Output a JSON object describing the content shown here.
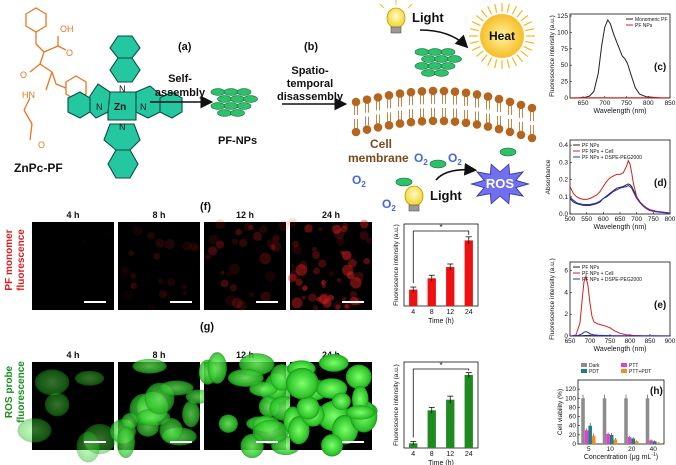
{
  "scheme": {
    "molecule_name": "ZnPc-PF",
    "metal_label": "Zn",
    "step_a_label": "(a)",
    "step_a_text": [
      "Self-",
      "assembly"
    ],
    "step_b_label": "(b)",
    "step_b_text": [
      "Spatio-",
      "temporal",
      "disassembly"
    ],
    "np_label": "PF-NPs",
    "light_label": "Light",
    "heat_label": "Heat",
    "ros_label": "ROS",
    "membrane_label": [
      "Cell",
      "membrane"
    ],
    "o2_label": "O",
    "o2_sub": "2",
    "molecule_atoms": {
      "oh": "OH",
      "o": "O",
      "hn": "HN",
      "n": "N"
    }
  },
  "imaging": {
    "row_f": {
      "panel_label": "(f)",
      "side_label": [
        "PF monomer",
        "fluorescence"
      ],
      "times": [
        "4 h",
        "8 h",
        "12 h",
        "24 h"
      ],
      "color": "#d42020"
    },
    "row_g": {
      "panel_label": "(g)",
      "side_label": [
        "ROS probe",
        "fluorescence"
      ],
      "times": [
        "4 h",
        "8 h",
        "12 h",
        "24 h"
      ],
      "color": "#1fa11f"
    }
  },
  "chart_data": [
    {
      "id": "c",
      "panel_label": "(c)",
      "type": "line",
      "xlabel": "Wavelength (nm)",
      "ylabel": "Fluorescence intensity (a.u.)",
      "xlim": [
        620,
        850
      ],
      "ylim": [
        0,
        128
      ],
      "xticks": [
        650,
        700,
        750,
        800,
        850
      ],
      "yticks": [
        0,
        25,
        50,
        75,
        100,
        125
      ],
      "legend": "top-right",
      "series": [
        {
          "name": "Monomeric PF",
          "color": "#222222",
          "x": [
            625,
            640,
            655,
            665,
            675,
            685,
            693,
            700,
            707,
            713,
            720,
            727,
            733,
            740,
            746,
            752,
            760,
            770,
            780,
            795,
            810,
            830,
            850
          ],
          "y": [
            0,
            0,
            1,
            3,
            10,
            38,
            80,
            108,
            119,
            113,
            98,
            86,
            76,
            64,
            60,
            53,
            36,
            16,
            6,
            2,
            1,
            0,
            0
          ]
        },
        {
          "name": "PF NPs",
          "color": "#d42020",
          "x": [
            625,
            850
          ],
          "y": [
            0.5,
            0.5
          ]
        }
      ]
    },
    {
      "id": "d",
      "panel_label": "(d)",
      "type": "line",
      "xlabel": "Wavelength (nm)",
      "ylabel": "Absorbance",
      "xlim": [
        500,
        800
      ],
      "ylim": [
        0,
        0.43
      ],
      "xticks": [
        500,
        550,
        600,
        650,
        700,
        750,
        800
      ],
      "yticks": [
        0.0,
        0.1,
        0.2,
        0.3,
        0.4
      ],
      "legend": "top-left",
      "series": [
        {
          "name": "PF NPs",
          "color": "#222222",
          "x": [
            500,
            510,
            520,
            530,
            540,
            550,
            560,
            570,
            580,
            590,
            600,
            610,
            620,
            630,
            640,
            650,
            660,
            670,
            675,
            680,
            685,
            690,
            700,
            710,
            720,
            730,
            740,
            760,
            780,
            800
          ],
          "y": [
            0.09,
            0.07,
            0.06,
            0.055,
            0.05,
            0.05,
            0.05,
            0.055,
            0.06,
            0.07,
            0.09,
            0.105,
            0.12,
            0.135,
            0.15,
            0.155,
            0.16,
            0.17,
            0.175,
            0.17,
            0.16,
            0.14,
            0.1,
            0.07,
            0.05,
            0.035,
            0.025,
            0.015,
            0.01,
            0.005
          ]
        },
        {
          "name": "PF NPs + Cell",
          "color": "#d42020",
          "x": [
            500,
            510,
            520,
            530,
            540,
            550,
            560,
            570,
            580,
            590,
            600,
            610,
            620,
            630,
            640,
            650,
            660,
            670,
            675,
            680,
            685,
            690,
            700,
            710,
            720,
            730,
            740,
            760,
            780,
            800
          ],
          "y": [
            0.16,
            0.12,
            0.1,
            0.09,
            0.085,
            0.085,
            0.09,
            0.1,
            0.11,
            0.13,
            0.16,
            0.19,
            0.21,
            0.22,
            0.23,
            0.23,
            0.24,
            0.28,
            0.31,
            0.29,
            0.24,
            0.18,
            0.1,
            0.07,
            0.05,
            0.035,
            0.025,
            0.015,
            0.01,
            0.005
          ]
        },
        {
          "name": "PF NPs + DSPE-PEG2000",
          "color": "#2a2ad4",
          "x": [
            500,
            510,
            520,
            530,
            540,
            550,
            560,
            570,
            580,
            590,
            600,
            610,
            620,
            630,
            640,
            650,
            660,
            670,
            675,
            680,
            685,
            690,
            700,
            710,
            720,
            730,
            740,
            760,
            780,
            800
          ],
          "y": [
            0.1,
            0.08,
            0.065,
            0.06,
            0.055,
            0.055,
            0.055,
            0.06,
            0.065,
            0.075,
            0.09,
            0.1,
            0.115,
            0.13,
            0.14,
            0.15,
            0.155,
            0.16,
            0.165,
            0.16,
            0.15,
            0.13,
            0.09,
            0.065,
            0.045,
            0.03,
            0.02,
            0.012,
            0.008,
            0.004
          ]
        }
      ]
    },
    {
      "id": "e",
      "panel_label": "(e)",
      "type": "line",
      "xlabel": "Wavelength (nm)",
      "ylabel": "Fluorescence intensity (a.u.)",
      "xlim": [
        650,
        900
      ],
      "ylim": [
        0,
        6.8
      ],
      "xticks": [
        650,
        700,
        750,
        800,
        850,
        900
      ],
      "yticks": [
        0,
        2,
        4,
        6
      ],
      "legend": "top-left",
      "series": [
        {
          "name": "PF NPs",
          "color": "#222222",
          "x": [
            655,
            670,
            680,
            690,
            700,
            710,
            720,
            740,
            760,
            800,
            850,
            900
          ],
          "y": [
            0.02,
            0.02,
            0.03,
            0.05,
            0.04,
            0.03,
            0.02,
            0.02,
            0.01,
            0.01,
            0.01,
            0.01
          ]
        },
        {
          "name": "PF NPs + Cell",
          "color": "#d42020",
          "x": [
            655,
            665,
            675,
            680,
            685,
            690,
            695,
            700,
            705,
            710,
            720,
            730,
            740,
            750,
            760,
            775,
            790,
            810,
            830,
            860,
            900
          ],
          "y": [
            0,
            0.1,
            1.2,
            3.2,
            5.0,
            5.5,
            4.6,
            3.0,
            1.8,
            1.3,
            1.1,
            1.0,
            0.9,
            0.75,
            0.5,
            0.25,
            0.12,
            0.05,
            0.02,
            0.01,
            0
          ]
        },
        {
          "name": "PF NPs + DSPE-PEG2000",
          "color": "#2a2ad4",
          "x": [
            655,
            670,
            680,
            685,
            690,
            695,
            700,
            710,
            720,
            740,
            760,
            800,
            850,
            900
          ],
          "y": [
            0,
            0.05,
            0.2,
            0.35,
            0.4,
            0.32,
            0.2,
            0.1,
            0.07,
            0.05,
            0.03,
            0.01,
            0.01,
            0
          ]
        }
      ]
    },
    {
      "id": "f_bar",
      "type": "bar",
      "categories": [
        "4",
        "8",
        "12",
        "24"
      ],
      "values": [
        1.6,
        2.7,
        3.8,
        6.4
      ],
      "errors": [
        0.25,
        0.3,
        0.3,
        0.35
      ],
      "xlabel": "Time (h)",
      "ylabel": "Fluorescence intensity (a.u.)",
      "ylim": [
        0,
        8
      ],
      "color": "#ee1111",
      "significance": {
        "from": "4",
        "to": "24",
        "label": "*"
      }
    },
    {
      "id": "g_bar",
      "type": "bar",
      "categories": [
        "4",
        "8",
        "12",
        "24"
      ],
      "values": [
        0.4,
        3.2,
        4.1,
        6.2
      ],
      "errors": [
        0.15,
        0.25,
        0.3,
        0.2
      ],
      "xlabel": "Time (h)",
      "ylabel": "Fluorescence intensity (a.u.)",
      "ylim": [
        0,
        7.3
      ],
      "color": "#1f8a1f",
      "significance": {
        "from": "4",
        "to": "24",
        "label": "*"
      }
    },
    {
      "id": "h",
      "panel_label": "(h)",
      "type": "bar",
      "categories": [
        "5",
        "10",
        "20",
        "40"
      ],
      "xlabel": "Concentration (μg mL",
      "xlabel_sup": "-1",
      "xlabel_end": ")",
      "ylabel": "Cell viability (%)",
      "ylim": [
        0,
        140
      ],
      "yticks": [
        0,
        20,
        40,
        60,
        80,
        100,
        120
      ],
      "legend": "top",
      "series": [
        {
          "name": "Dark",
          "color": "#8c8c8c",
          "values": [
            100,
            100,
            100,
            100
          ],
          "errors": [
            8,
            8,
            8,
            8
          ]
        },
        {
          "name": "PTT",
          "color": "#e83bd8",
          "values": [
            30,
            22,
            15,
            8
          ],
          "errors": [
            4,
            3,
            3,
            2
          ]
        },
        {
          "name": "PDT",
          "color": "#1a7f7f",
          "values": [
            40,
            20,
            12,
            6
          ],
          "errors": [
            6,
            4,
            3,
            2
          ]
        },
        {
          "name": "PTT+PDT",
          "color": "#f0901a",
          "values": [
            18,
            10,
            6,
            3
          ],
          "errors": [
            5,
            3,
            2,
            1
          ]
        }
      ]
    }
  ]
}
